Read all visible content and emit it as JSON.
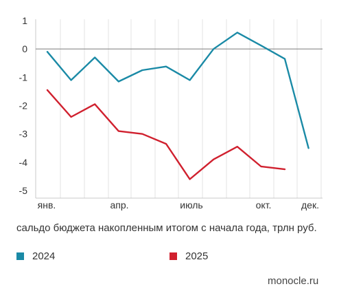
{
  "chart_data": {
    "type": "line",
    "x_ticks": [
      "янв.",
      "апр.",
      "июль",
      "окт.",
      "дек."
    ],
    "y_ticks": [
      "1",
      "0",
      "-1",
      "-2",
      "-3",
      "-4",
      "-5"
    ],
    "ylim": [
      -5,
      1
    ],
    "months": [
      1,
      2,
      3,
      4,
      5,
      6,
      7,
      8,
      9,
      10,
      11,
      12
    ],
    "series": [
      {
        "name": "2024",
        "color": "#1a8aa6",
        "values": [
          -0.1,
          -1.1,
          -0.3,
          -1.15,
          -0.75,
          -0.62,
          -1.1,
          0.0,
          0.58,
          0.12,
          -0.35,
          -3.5
        ]
      },
      {
        "name": "2025",
        "color": "#d0202e",
        "values": [
          -1.45,
          -2.4,
          -1.95,
          -2.9,
          -3.0,
          -3.35,
          -4.6,
          -3.9,
          -3.45,
          -4.15,
          -4.25
        ]
      }
    ],
    "grid": "vertical",
    "zero_line": true,
    "caption": "сальдо бюджета накопленным итогом с начала года, трлн руб.",
    "legend_placement": "bottom"
  },
  "source": "monocle.ru"
}
